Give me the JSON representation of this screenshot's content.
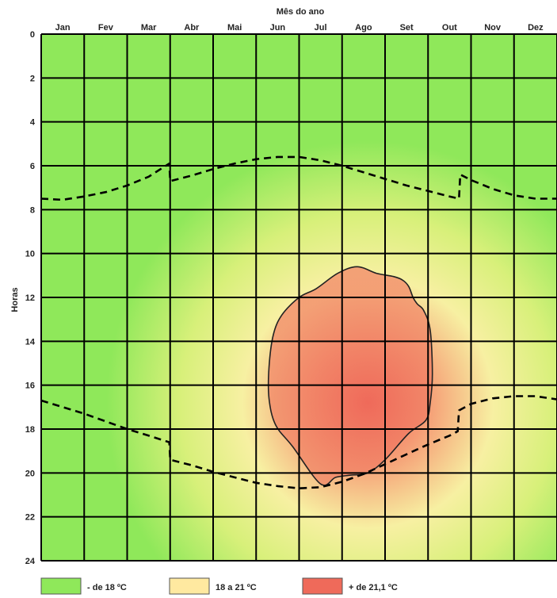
{
  "chart_data": {
    "type": "heatmap",
    "title": "",
    "xlabel": "Mês do ano",
    "ylabel": "Horas",
    "categories": [
      "Jan",
      "Fev",
      "Mar",
      "Abr",
      "Mai",
      "Jun",
      "Jul",
      "Ago",
      "Set",
      "Out",
      "Nov",
      "Dez"
    ],
    "y_ticks": [
      "0",
      "2",
      "4",
      "6",
      "8",
      "10",
      "12",
      "14",
      "16",
      "18",
      "20",
      "22",
      "24"
    ],
    "ylim": [
      0,
      24
    ],
    "grid": true,
    "legend_position": "bottom",
    "legend": [
      {
        "label": "- de 18 ºC",
        "color": "#8fe85a"
      },
      {
        "label": "18 a 21 ºC",
        "color": "#ffe9a0"
      },
      {
        "label": "+ de 21,1 ºC",
        "color": "#ef6a5a"
      }
    ],
    "colors": {
      "cool": "#8fe85a",
      "mid": "#f7f0a2",
      "warm": "#ef6a5a"
    },
    "warm_center": {
      "month": 7.6,
      "hour": 16.8
    },
    "sunrise_line": {
      "name": "",
      "style": "dashed",
      "x": [
        0.0,
        0.5,
        1.0,
        1.5,
        2.0,
        2.5,
        2.98,
        3.0,
        3.5,
        4.0,
        4.5,
        5.0,
        5.5,
        6.0,
        6.5,
        7.0,
        7.5,
        8.0,
        8.5,
        9.0,
        9.5,
        9.72,
        9.75,
        10.0,
        10.5,
        11.0,
        11.5,
        12.0
      ],
      "y": [
        7.5,
        7.55,
        7.4,
        7.2,
        6.9,
        6.5,
        5.9,
        6.7,
        6.45,
        6.15,
        5.9,
        5.7,
        5.6,
        5.6,
        5.75,
        6.0,
        6.3,
        6.6,
        6.9,
        7.15,
        7.4,
        7.5,
        6.4,
        6.65,
        7.05,
        7.35,
        7.5,
        7.5
      ]
    },
    "sunset_line": {
      "name": "",
      "style": "dashed",
      "x": [
        0.0,
        0.5,
        1.0,
        1.5,
        2.0,
        2.5,
        2.98,
        3.0,
        3.5,
        4.0,
        4.5,
        5.0,
        5.5,
        6.0,
        6.5,
        7.0,
        7.5,
        8.0,
        8.5,
        9.0,
        9.5,
        9.69,
        9.72,
        10.0,
        10.5,
        11.0,
        11.5,
        12.0
      ],
      "y": [
        16.7,
        17.0,
        17.3,
        17.65,
        18.0,
        18.3,
        18.6,
        19.4,
        19.65,
        19.95,
        20.2,
        20.45,
        20.6,
        20.7,
        20.65,
        20.4,
        20.05,
        19.6,
        19.15,
        18.7,
        18.3,
        18.1,
        17.15,
        16.85,
        16.6,
        16.5,
        16.5,
        16.65
      ]
    },
    "warm_region": {
      "name": "",
      "x": [
        6.4,
        6.9,
        7.35,
        7.8,
        8.2,
        8.4,
        8.55,
        8.65,
        8.75,
        8.9,
        9.05,
        9.1,
        9.05,
        8.95,
        8.55,
        8.0,
        7.6,
        7.2,
        6.85,
        6.5,
        5.85,
        5.45,
        5.3,
        5.3,
        5.4,
        5.6,
        6.0
      ],
      "y": [
        11.6,
        10.9,
        10.6,
        10.9,
        11.05,
        11.2,
        11.5,
        12.0,
        12.3,
        12.6,
        13.5,
        15.5,
        16.8,
        17.6,
        18.2,
        19.4,
        20.0,
        20.1,
        20.2,
        20.5,
        18.8,
        17.8,
        16.6,
        15.2,
        13.7,
        12.8,
        12.0
      ]
    }
  }
}
